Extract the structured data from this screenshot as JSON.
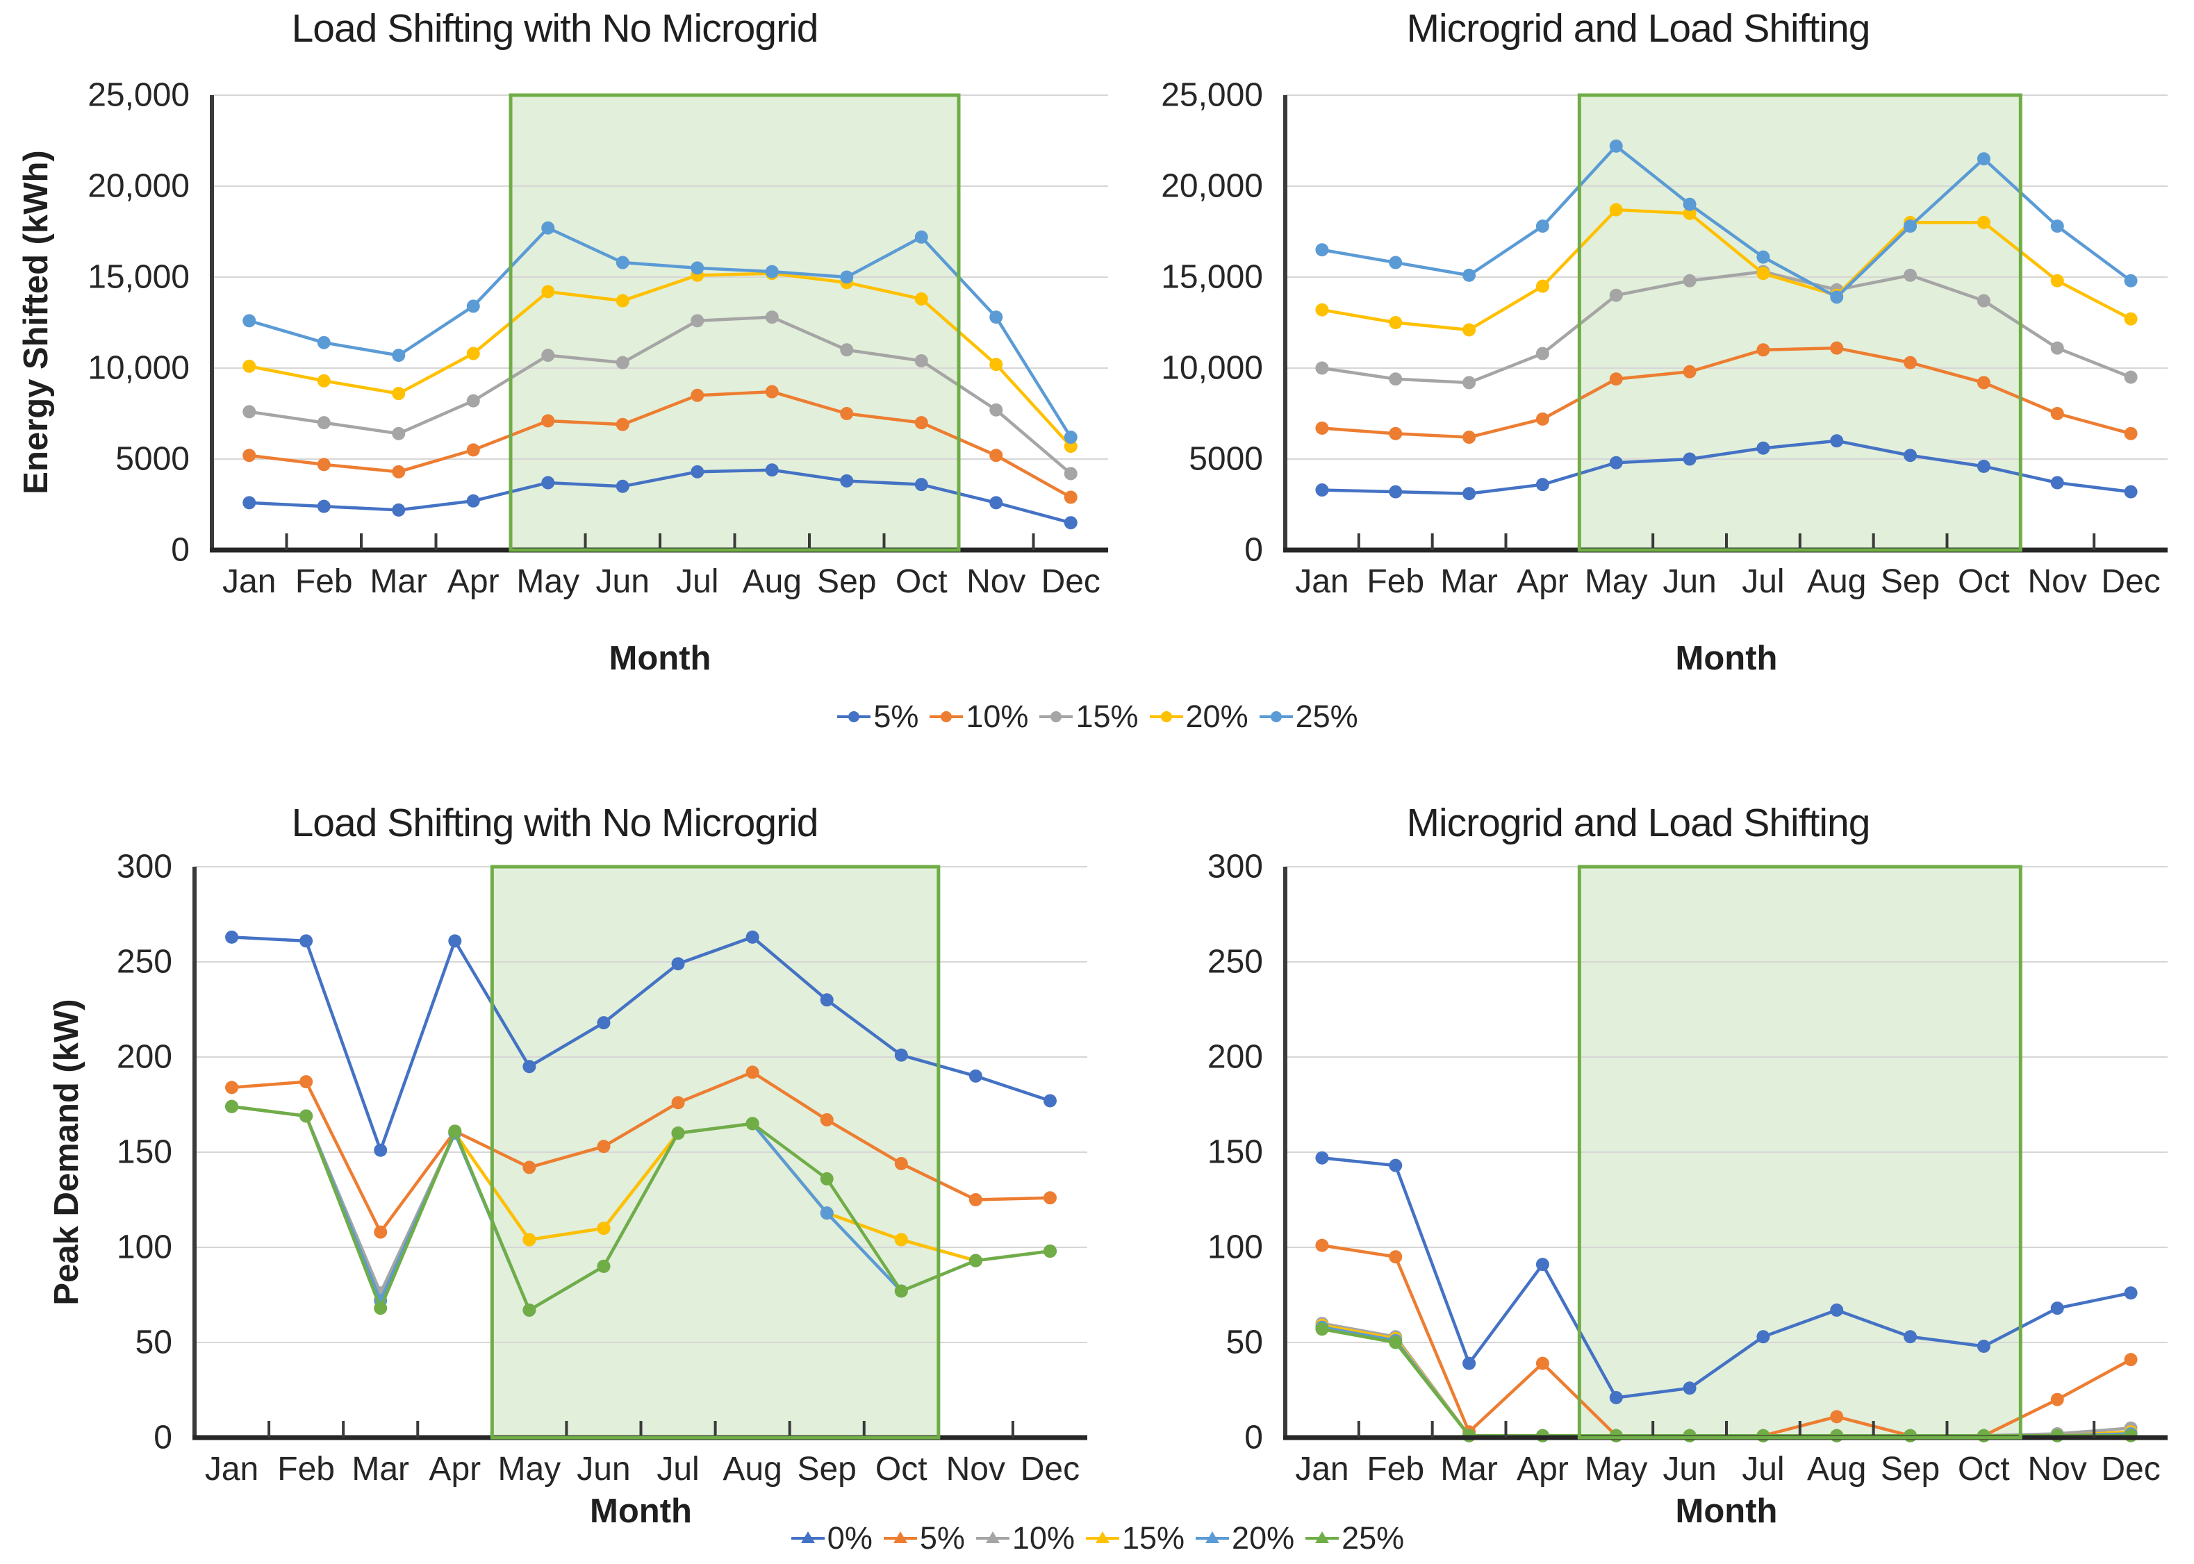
{
  "figure": {
    "background": "#ffffff",
    "shaded_region_label": "May-Oct highlighted season",
    "region_fill": "#E2EFDA",
    "region_border": "#70AD47"
  },
  "legends": {
    "top": {
      "marker_style": "line-dot",
      "items": [
        {
          "label": "5%",
          "color": "#4472C4"
        },
        {
          "label": "10%",
          "color": "#ED7D31"
        },
        {
          "label": "15%",
          "color": "#A5A5A5"
        },
        {
          "label": "20%",
          "color": "#FFC000"
        },
        {
          "label": "25%",
          "color": "#5B9BD5"
        }
      ]
    },
    "bottom": {
      "marker_style": "line-triangle",
      "items": [
        {
          "label": "0%",
          "color": "#4472C4"
        },
        {
          "label": "5%",
          "color": "#ED7D31"
        },
        {
          "label": "10%",
          "color": "#A5A5A5"
        },
        {
          "label": "15%",
          "color": "#FFC000"
        },
        {
          "label": "20%",
          "color": "#5B9BD5"
        },
        {
          "label": "25%",
          "color": "#70AD47"
        }
      ]
    }
  },
  "chart_data": [
    {
      "type": "line",
      "title": "Load Shifting with No Microgrid",
      "xlabel": "Month",
      "ylabel": "Energy Shifted (kWh)",
      "ylim": [
        0,
        25000
      ],
      "ytick_step": 5000,
      "ytick_labels": [
        "25,000",
        "20,000",
        "15,000",
        "10,000",
        "5000",
        "0"
      ],
      "grid": true,
      "legend_position": "shared-top",
      "shaded_region": {
        "from_boundary": 4,
        "to_boundary": 10
      },
      "categories": [
        "Jan",
        "Feb",
        "Mar",
        "Apr",
        "May",
        "Jun",
        "Jul",
        "Aug",
        "Sep",
        "Oct",
        "Nov",
        "Dec"
      ],
      "series": [
        {
          "name": "5%",
          "color": "#4472C4",
          "values": [
            2600,
            2400,
            2200,
            2700,
            3700,
            3500,
            4300,
            4400,
            3800,
            3600,
            2600,
            1500
          ]
        },
        {
          "name": "10%",
          "color": "#ED7D31",
          "values": [
            5200,
            4700,
            4300,
            5500,
            7100,
            6900,
            8500,
            8700,
            7500,
            7000,
            5200,
            2900
          ]
        },
        {
          "name": "15%",
          "color": "#A5A5A5",
          "values": [
            7600,
            7000,
            6400,
            8200,
            10700,
            10300,
            12600,
            12800,
            11000,
            10400,
            7700,
            4200
          ]
        },
        {
          "name": "20%",
          "color": "#FFC000",
          "values": [
            10100,
            9300,
            8600,
            10800,
            14200,
            13700,
            15100,
            15200,
            14700,
            13800,
            10200,
            5700
          ]
        },
        {
          "name": "25%",
          "color": "#5B9BD5",
          "values": [
            12600,
            11400,
            10700,
            13400,
            17700,
            15800,
            15500,
            15300,
            15000,
            17200,
            12800,
            6200
          ]
        }
      ]
    },
    {
      "type": "line",
      "title": "Microgrid and Load Shifting",
      "xlabel": "Month",
      "ylabel": "",
      "ylim": [
        0,
        25000
      ],
      "ytick_step": 5000,
      "ytick_labels": [
        "25,000",
        "20,000",
        "15,000",
        "10,000",
        "5000",
        "0"
      ],
      "grid": true,
      "legend_position": "shared-top",
      "shaded_region": {
        "from_boundary": 4,
        "to_boundary": 10
      },
      "categories": [
        "Jan",
        "Feb",
        "Mar",
        "Apr",
        "May",
        "Jun",
        "Jul",
        "Aug",
        "Sep",
        "Oct",
        "Nov",
        "Dec"
      ],
      "series": [
        {
          "name": "5%",
          "color": "#4472C4",
          "values": [
            3300,
            3200,
            3100,
            3600,
            4800,
            5000,
            5600,
            6000,
            5200,
            4600,
            3700,
            3200
          ]
        },
        {
          "name": "10%",
          "color": "#ED7D31",
          "values": [
            6700,
            6400,
            6200,
            7200,
            9400,
            9800,
            11000,
            11100,
            10300,
            9200,
            7500,
            6400
          ]
        },
        {
          "name": "15%",
          "color": "#A5A5A5",
          "values": [
            10000,
            9400,
            9200,
            10800,
            14000,
            14800,
            15300,
            14300,
            15100,
            13700,
            11100,
            9500
          ]
        },
        {
          "name": "20%",
          "color": "#FFC000",
          "values": [
            13200,
            12500,
            12100,
            14500,
            18700,
            18500,
            15200,
            14000,
            18000,
            18000,
            14800,
            12700
          ]
        },
        {
          "name": "25%",
          "color": "#5B9BD5",
          "values": [
            16500,
            15800,
            15100,
            17800,
            22200,
            19000,
            16100,
            13900,
            17800,
            21500,
            17800,
            14800
          ]
        }
      ]
    },
    {
      "type": "line",
      "title": "Load Shifting with No Microgrid",
      "xlabel": "Month",
      "ylabel": "Peak Demand (kW)",
      "ylim": [
        0,
        300
      ],
      "ytick_step": 50,
      "ytick_labels": [
        "300",
        "250",
        "200",
        "150",
        "100",
        "50",
        "0"
      ],
      "grid": true,
      "legend_position": "shared-bottom",
      "shaded_region": {
        "from_boundary": 4,
        "to_boundary": 10
      },
      "categories": [
        "Jan",
        "Feb",
        "Mar",
        "Apr",
        "May",
        "Jun",
        "Jul",
        "Aug",
        "Sep",
        "Oct",
        "Nov",
        "Dec"
      ],
      "series": [
        {
          "name": "0%",
          "color": "#4472C4",
          "values": [
            263,
            261,
            151,
            261,
            195,
            218,
            249,
            263,
            230,
            201,
            190,
            177
          ]
        },
        {
          "name": "5%",
          "color": "#ED7D31",
          "values": [
            184,
            187,
            108,
            161,
            142,
            153,
            176,
            192,
            167,
            144,
            125,
            126
          ]
        },
        {
          "name": "10%",
          "color": "#A5A5A5",
          "values": [
            174,
            169,
            76,
            160,
            104,
            110,
            160,
            165,
            118,
            104,
            93,
            98
          ]
        },
        {
          "name": "15%",
          "color": "#FFC000",
          "values": [
            174,
            169,
            72,
            160,
            104,
            110,
            160,
            165,
            118,
            104,
            93,
            98
          ]
        },
        {
          "name": "20%",
          "color": "#5B9BD5",
          "values": [
            174,
            169,
            72,
            160,
            67,
            90,
            160,
            165,
            118,
            77,
            93,
            98
          ]
        },
        {
          "name": "25%",
          "color": "#70AD47",
          "values": [
            174,
            169,
            68,
            161,
            67,
            90,
            160,
            165,
            136,
            77,
            93,
            98
          ]
        }
      ]
    },
    {
      "type": "line",
      "title": "Microgrid and Load Shifting",
      "xlabel": "Month",
      "ylabel": "",
      "ylim": [
        0,
        300
      ],
      "ytick_step": 50,
      "ytick_labels": [
        "300",
        "250",
        "200",
        "150",
        "100",
        "50",
        "0"
      ],
      "grid": true,
      "legend_position": "shared-bottom",
      "shaded_region": {
        "from_boundary": 4,
        "to_boundary": 10
      },
      "categories": [
        "Jan",
        "Feb",
        "Mar",
        "Apr",
        "May",
        "Jun",
        "Jul",
        "Aug",
        "Sep",
        "Oct",
        "Nov",
        "Dec"
      ],
      "series": [
        {
          "name": "0%",
          "color": "#4472C4",
          "values": [
            147,
            143,
            39,
            91,
            21,
            26,
            53,
            67,
            53,
            48,
            68,
            76
          ]
        },
        {
          "name": "5%",
          "color": "#ED7D31",
          "values": [
            101,
            95,
            3,
            39,
            1,
            1,
            1,
            11,
            1,
            1,
            20,
            41
          ]
        },
        {
          "name": "10%",
          "color": "#A5A5A5",
          "values": [
            60,
            53,
            1,
            1,
            1,
            1,
            1,
            1,
            1,
            1,
            2,
            5
          ]
        },
        {
          "name": "15%",
          "color": "#FFC000",
          "values": [
            59,
            52,
            1,
            1,
            1,
            1,
            1,
            1,
            1,
            1,
            1,
            3
          ]
        },
        {
          "name": "20%",
          "color": "#5B9BD5",
          "values": [
            58,
            51,
            1,
            1,
            1,
            1,
            1,
            1,
            1,
            1,
            1,
            2
          ]
        },
        {
          "name": "25%",
          "color": "#70AD47",
          "values": [
            57,
            50,
            1,
            1,
            1,
            1,
            1,
            1,
            1,
            1,
            1,
            1
          ]
        }
      ]
    }
  ]
}
